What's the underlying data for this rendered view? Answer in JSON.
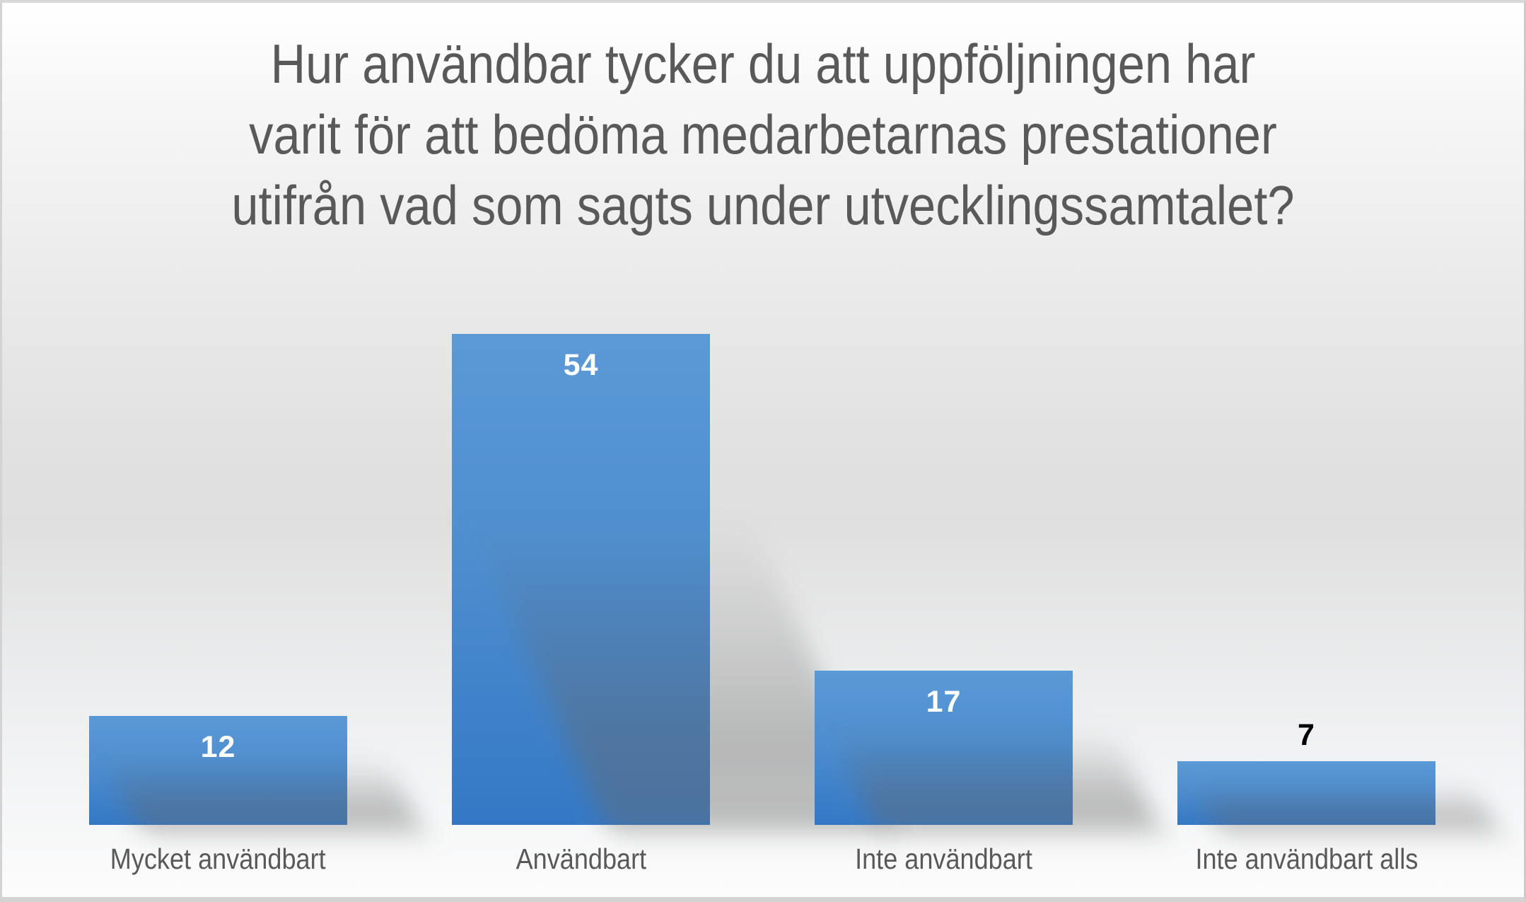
{
  "slide": {
    "frame_color": "#d3d3d3",
    "background_top": "#ffffff",
    "background_middle": "#dfdfdf",
    "background_bottom": "#fcfcfc",
    "text_color": "#595959"
  },
  "chart_data": {
    "type": "bar",
    "title": "Hur användbar tycker du att uppföljningen har varit för att bedöma medarbetarnas prestationer utifrån vad som sagts under utvecklingssamtalet?",
    "title_lines": "Hur användbar tycker du att uppföljningen har\nvarit för att bedöma medarbetarnas prestationer\nutifrån vad som sagts under utvecklingssamtalet?",
    "categories": [
      "Mycket användbart",
      "Användbart",
      "Inte användbart",
      "Inte användbart alls"
    ],
    "values": [
      12,
      54,
      17,
      7
    ],
    "data_label_placement": [
      "inside-end",
      "inside-end",
      "inside-end",
      "outside-end"
    ],
    "data_label_colors": [
      "#ffffff",
      "#ffffff",
      "#ffffff",
      "#000000"
    ],
    "bar_fill_top": "#5b99d6",
    "bar_fill_bottom": "#3478c5",
    "bar_shadow": "soft gray perspective shadow to bottom-right",
    "title_color": "#595959",
    "category_label_color": "#595959",
    "xlabel": "",
    "ylabel": "",
    "ylim": [
      0,
      56
    ],
    "x_axis_visible": false,
    "y_axis_visible": false,
    "gridlines": false,
    "legend": false
  }
}
